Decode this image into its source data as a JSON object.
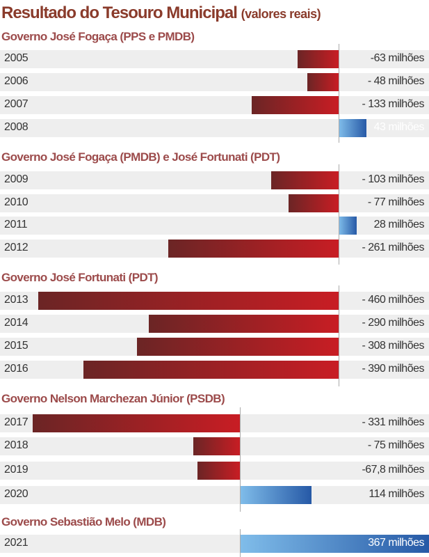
{
  "title": "Resultado do Tesouro Municipal",
  "title_note": "(valores reais)",
  "colors": {
    "negative_dark": "#6b2525",
    "negative_light": "#c81d24",
    "positive_light": "#80bdea",
    "positive_dark": "#2659a6",
    "heading": "#9c4b4b",
    "title": "#8a3b2b",
    "row_bg": "#eeeeee"
  },
  "chart_data": {
    "type": "bar",
    "orientation": "horizontal",
    "unit": "milhões",
    "groups": [
      {
        "heading": "Governo José Fogaça (PPS e PMDB)",
        "rows": [
          {
            "year": "2005",
            "value": -63,
            "label": "-63 milhões"
          },
          {
            "year": "2006",
            "value": -48,
            "label": "- 48 milhões"
          },
          {
            "year": "2007",
            "value": -133,
            "label": "- 133 milhões"
          },
          {
            "year": "2008",
            "value": 43,
            "label": "43 milhões"
          }
        ]
      },
      {
        "heading": "Governo José Fogaça (PMDB) e José Fortunati (PDT)",
        "rows": [
          {
            "year": "2009",
            "value": -103,
            "label": "- 103 milhões"
          },
          {
            "year": "2010",
            "value": -77,
            "label": "- 77 milhões"
          },
          {
            "year": "2011",
            "value": 28,
            "label": "28 milhões"
          },
          {
            "year": "2012",
            "value": -261,
            "label": "- 261 milhões"
          }
        ]
      },
      {
        "heading": "Governo José Fortunati (PDT)",
        "rows": [
          {
            "year": "2013",
            "value": -460,
            "label": "- 460 milhões"
          },
          {
            "year": "2014",
            "value": -290,
            "label": "- 290 milhões"
          },
          {
            "year": "2015",
            "value": -308,
            "label": "- 308 milhões"
          },
          {
            "year": "2016",
            "value": -390,
            "label": "- 390 milhões"
          }
        ]
      },
      {
        "heading": "Governo Nelson Marchezan Júnior (PSDB)",
        "rows": [
          {
            "year": "2017",
            "value": -331,
            "label": "- 331 milhões"
          },
          {
            "year": "2018",
            "value": -75,
            "label": "- 75 milhões"
          },
          {
            "year": "2019",
            "value": -67.8,
            "label": "-67,8 milhões"
          },
          {
            "year": "2020",
            "value": 114,
            "label": "114 milhões"
          }
        ]
      },
      {
        "heading": "Governo Sebastião Melo (MDB)",
        "rows": [
          {
            "year": "2021",
            "value": 367,
            "label": "367 milhões"
          }
        ]
      }
    ]
  }
}
